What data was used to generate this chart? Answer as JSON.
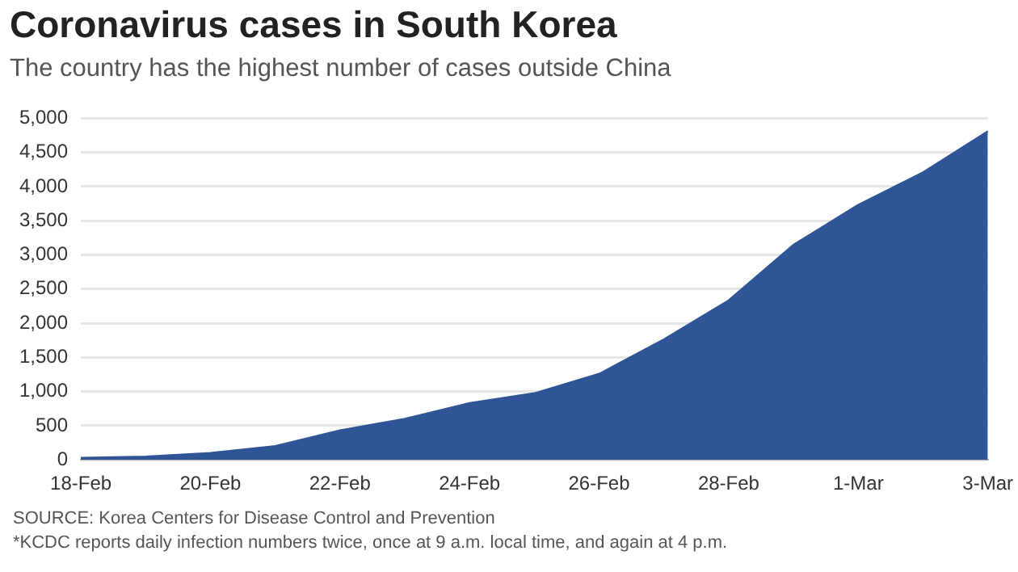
{
  "chart_data": {
    "type": "area",
    "title": "Coronavirus cases in South Korea",
    "subtitle": "The country has the highest number of cases outside China",
    "categories": [
      "18-Feb",
      null,
      "20-Feb",
      null,
      "22-Feb",
      null,
      "24-Feb",
      null,
      "26-Feb",
      null,
      "28-Feb",
      null,
      "1-Mar",
      null,
      "3-Mar"
    ],
    "values": [
      31,
      51,
      104,
      204,
      433,
      602,
      833,
      977,
      1261,
      1766,
      2337,
      3150,
      3736,
      4212,
      4812
    ],
    "color": "#2f5597",
    "ylim": [
      0,
      5000
    ],
    "yticks": [
      0,
      {
        "value": 500,
        "label": "500"
      },
      {
        "value": 1000,
        "label": "1,000"
      },
      {
        "value": 1500,
        "label": "1,500"
      },
      {
        "value": 2000,
        "label": "2,000"
      },
      {
        "value": 2500,
        "label": "2,500"
      },
      {
        "value": 3000,
        "label": "3,000"
      },
      {
        "value": 3500,
        "label": "3,500"
      },
      {
        "value": 4000,
        "label": "4,000"
      },
      {
        "value": 4500,
        "label": "4,500"
      },
      {
        "value": 5000,
        "label": "5,000"
      }
    ],
    "grid": "y",
    "legend": false,
    "annotations": [
      "SOURCE: Korea Centers for Disease Control and Prevention",
      "*KCDC reports daily infection numbers twice, once at 9 a.m. local time, and again at 4 p.m."
    ]
  }
}
